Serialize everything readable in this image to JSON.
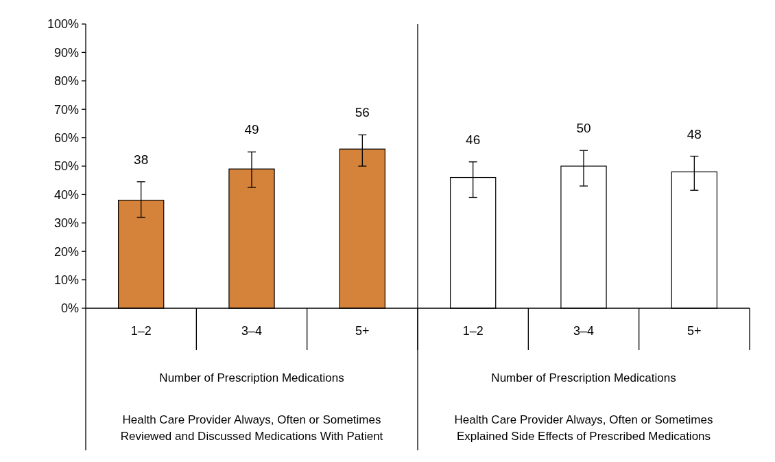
{
  "chart_data": {
    "type": "bar",
    "categories": [
      "1–2",
      "3–4",
      "5+",
      "1–2",
      "3–4",
      "5+"
    ],
    "values": [
      38,
      49,
      56,
      46,
      50,
      48
    ],
    "colors": [
      "#d5823a",
      "#d5823a",
      "#d5823a",
      "#ffffff",
      "#ffffff",
      "#ffffff"
    ],
    "errors": [
      [
        32,
        44.5
      ],
      [
        42.5,
        55
      ],
      [
        50,
        61
      ],
      [
        39,
        51.5
      ],
      [
        43,
        55.5
      ],
      [
        41.5,
        53.5
      ]
    ],
    "data_labels": true,
    "ylim": [
      0,
      100
    ],
    "yticks": [
      {
        "value": 0,
        "label": "0%"
      },
      {
        "value": 10,
        "label": "10%"
      },
      {
        "value": 20,
        "label": "20%"
      },
      {
        "value": 30,
        "label": "30%"
      },
      {
        "value": 40,
        "label": "40%"
      },
      {
        "value": 50,
        "label": "50%"
      },
      {
        "value": 60,
        "label": "60%"
      },
      {
        "value": 70,
        "label": "70%"
      },
      {
        "value": 80,
        "label": "80%"
      },
      {
        "value": 90,
        "label": "90%"
      },
      {
        "value": 100,
        "label": "100%"
      }
    ],
    "grid": false,
    "annotations": [
      "Number of Prescription Medications",
      "Number of Prescription Medications",
      "Health Care Provider Always, Often or Sometimes\nReviewed and Discussed Medications With Patient",
      "Health Care Provider Always, Often or Sometimes\nExplained Side Effects of Prescribed Medications"
    ]
  }
}
